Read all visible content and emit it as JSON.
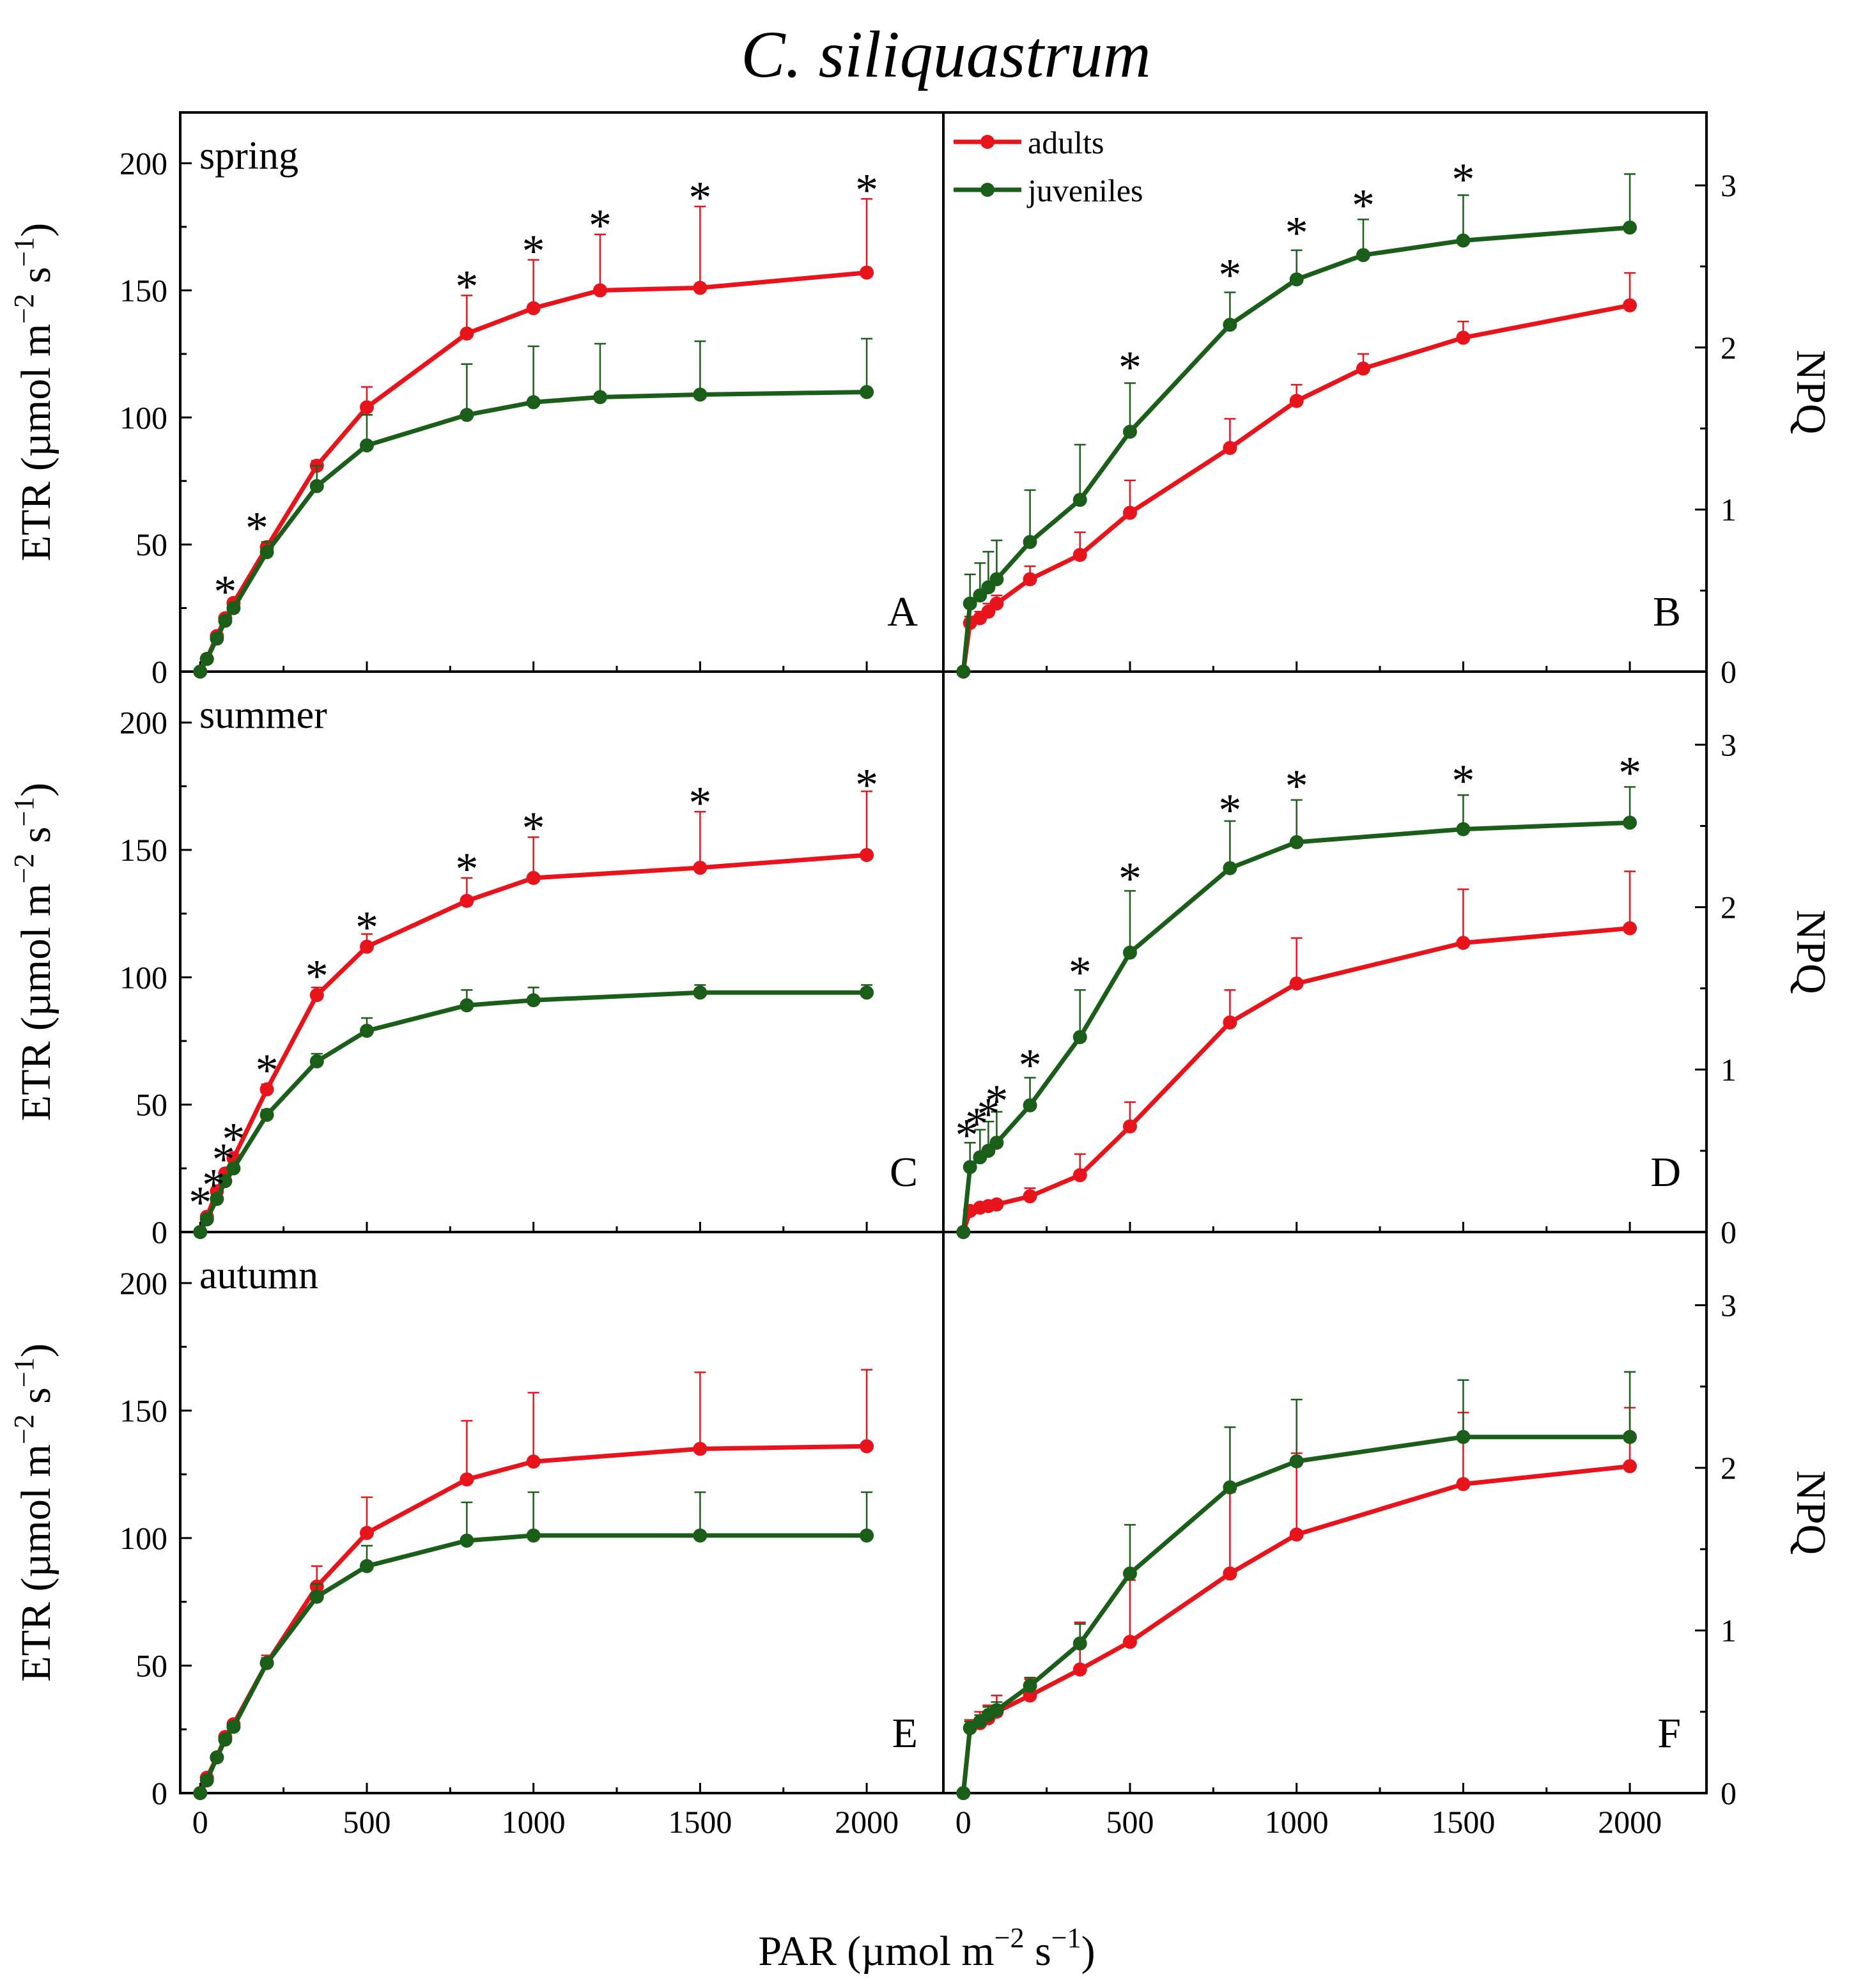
{
  "title": "C. siliquastrum",
  "x_axis_title": "PAR (µmol m",
  "x_axis_title_exp": "−2",
  "x_axis_title_mid": " s",
  "x_axis_title_exp2": "−1",
  "x_axis_title_end": ")",
  "left_axis_title": "ETR (µmol m",
  "left_axis_title_exp": "−2",
  "left_axis_title_mid": " s",
  "left_axis_title_exp2": "−1",
  "left_axis_title_end": ")",
  "right_axis_title": "NPQ",
  "legend": {
    "adults": "adults",
    "juveniles": "juveniles"
  },
  "colors": {
    "adults": "#e8141c",
    "juveniles": "#1a5e1a"
  },
  "star_symbol": "*",
  "chart_data": {
    "type": "line",
    "x_ticks": [
      0,
      500,
      1000,
      1500,
      2000
    ],
    "x_tick_labels": [
      "0",
      "500",
      "1000",
      "1500",
      "2000"
    ],
    "xlim": [
      -60,
      2230
    ],
    "etr_ticks": [
      0,
      50,
      100,
      150,
      200
    ],
    "etr_tick_labels": [
      "0",
      "50",
      "100",
      "150",
      "200"
    ],
    "etr_ylim": [
      0,
      220
    ],
    "npq_ticks": [
      0,
      1,
      2,
      3
    ],
    "npq_tick_labels": [
      "0",
      "1",
      "2",
      "3"
    ],
    "npq_ylim": [
      0,
      3.45
    ],
    "panels": [
      {
        "id": "A",
        "row": 0,
        "col": 0,
        "metric": "ETR",
        "season": "spring",
        "series": [
          {
            "name": "adults",
            "x": [
              0,
              20,
              50,
              75,
              100,
              200,
              350,
              500,
              800,
              1000,
              1200,
              1500,
              2000
            ],
            "y": [
              0,
              5,
              14,
              21,
              27,
              49,
              81,
              104,
              133,
              143,
              150,
              151,
              157
            ],
            "err": [
              0,
              0.5,
              1,
              1,
              1.5,
              2,
              2,
              8,
              15,
              19,
              22,
              32,
              29
            ]
          },
          {
            "name": "juveniles",
            "x": [
              0,
              20,
              50,
              75,
              100,
              200,
              350,
              500,
              800,
              1000,
              1200,
              1500,
              2000
            ],
            "y": [
              0,
              5,
              13,
              20,
              25,
              47,
              73,
              89,
              101,
              106,
              108,
              109,
              110
            ],
            "err": [
              0,
              0.5,
              1,
              1,
              1.5,
              4,
              8,
              12,
              20,
              22,
              21,
              21,
              21
            ]
          }
        ],
        "stars": [
          {
            "x": 75,
            "y": 33
          },
          {
            "x": 170,
            "y": 58
          },
          {
            "x": 800,
            "y": 153
          },
          {
            "x": 1000,
            "y": 167
          },
          {
            "x": 1200,
            "y": 177
          },
          {
            "x": 1500,
            "y": 188
          },
          {
            "x": 2000,
            "y": 191
          }
        ]
      },
      {
        "id": "B",
        "row": 0,
        "col": 1,
        "metric": "NPQ",
        "season": "",
        "series": [
          {
            "name": "adults",
            "x": [
              0,
              20,
              50,
              75,
              100,
              200,
              350,
              500,
              800,
              1000,
              1200,
              1500,
              2000
            ],
            "y": [
              0,
              0.3,
              0.33,
              0.37,
              0.42,
              0.57,
              0.72,
              0.98,
              1.38,
              1.67,
              1.87,
              2.06,
              2.26
            ],
            "err": [
              0,
              0.04,
              0.04,
              0.05,
              0.05,
              0.08,
              0.14,
              0.2,
              0.18,
              0.1,
              0.09,
              0.1,
              0.2
            ]
          },
          {
            "name": "juveniles",
            "x": [
              0,
              20,
              50,
              75,
              100,
              200,
              350,
              500,
              800,
              1000,
              1200,
              1500,
              2000
            ],
            "y": [
              0,
              0.42,
              0.47,
              0.52,
              0.57,
              0.8,
              1.06,
              1.48,
              2.14,
              2.42,
              2.57,
              2.66,
              2.74
            ],
            "err": [
              0,
              0.18,
              0.2,
              0.22,
              0.24,
              0.32,
              0.34,
              0.3,
              0.2,
              0.18,
              0.22,
              0.28,
              0.33
            ]
          }
        ],
        "stars": [
          {
            "x": 500,
            "y": 1.9
          },
          {
            "x": 800,
            "y": 2.47
          },
          {
            "x": 1000,
            "y": 2.73
          },
          {
            "x": 1200,
            "y": 2.9
          },
          {
            "x": 1500,
            "y": 3.06
          }
        ]
      },
      {
        "id": "C",
        "row": 1,
        "col": 0,
        "metric": "ETR",
        "season": "summer",
        "series": [
          {
            "name": "adults",
            "x": [
              0,
              20,
              50,
              75,
              100,
              200,
              350,
              500,
              800,
              1000,
              1500,
              2000
            ],
            "y": [
              0,
              6,
              16,
              23,
              29,
              56,
              93,
              112,
              130,
              139,
              143,
              148
            ],
            "err": [
              0,
              0.5,
              1,
              1,
              1.5,
              2,
              3,
              5,
              9,
              16,
              22,
              25
            ]
          },
          {
            "name": "juveniles",
            "x": [
              0,
              20,
              50,
              75,
              100,
              200,
              350,
              500,
              800,
              1000,
              1500,
              2000
            ],
            "y": [
              0,
              5,
              13,
              20,
              25,
              46,
              67,
              79,
              89,
              91,
              94,
              94
            ],
            "err": [
              0,
              0.5,
              1,
              1,
              1.5,
              2,
              3,
              5,
              6,
              5,
              3,
              3
            ]
          }
        ],
        "stars": [
          {
            "x": 0,
            "y": 13
          },
          {
            "x": 40,
            "y": 20
          },
          {
            "x": 70,
            "y": 30
          },
          {
            "x": 100,
            "y": 38
          },
          {
            "x": 200,
            "y": 65
          },
          {
            "x": 350,
            "y": 102
          },
          {
            "x": 500,
            "y": 121
          },
          {
            "x": 800,
            "y": 144
          },
          {
            "x": 1000,
            "y": 160
          },
          {
            "x": 1500,
            "y": 170
          },
          {
            "x": 2000,
            "y": 177
          }
        ]
      },
      {
        "id": "D",
        "row": 1,
        "col": 1,
        "metric": "NPQ",
        "season": "",
        "series": [
          {
            "name": "adults",
            "x": [
              0,
              20,
              50,
              75,
              100,
              200,
              350,
              500,
              800,
              1000,
              1500,
              2000
            ],
            "y": [
              0,
              0.13,
              0.15,
              0.16,
              0.17,
              0.22,
              0.35,
              0.65,
              1.29,
              1.53,
              1.78,
              1.87
            ],
            "err": [
              0,
              0.02,
              0.02,
              0.02,
              0.02,
              0.05,
              0.13,
              0.15,
              0.2,
              0.28,
              0.33,
              0.35
            ]
          },
          {
            "name": "juveniles",
            "x": [
              0,
              20,
              50,
              75,
              100,
              200,
              350,
              500,
              800,
              1000,
              1500,
              2000
            ],
            "y": [
              0,
              0.4,
              0.46,
              0.5,
              0.55,
              0.78,
              1.2,
              1.72,
              2.24,
              2.4,
              2.48,
              2.52
            ],
            "err": [
              0,
              0.15,
              0.17,
              0.18,
              0.19,
              0.17,
              0.29,
              0.38,
              0.29,
              0.26,
              0.21,
              0.22
            ]
          }
        ],
        "stars": [
          {
            "x": 10,
            "y": 0.62
          },
          {
            "x": 40,
            "y": 0.69
          },
          {
            "x": 75,
            "y": 0.75
          },
          {
            "x": 100,
            "y": 0.83
          },
          {
            "x": 200,
            "y": 1.05
          },
          {
            "x": 350,
            "y": 1.62
          },
          {
            "x": 500,
            "y": 2.2
          },
          {
            "x": 800,
            "y": 2.62
          },
          {
            "x": 1000,
            "y": 2.77
          },
          {
            "x": 1500,
            "y": 2.8
          },
          {
            "x": 2000,
            "y": 2.85
          }
        ]
      },
      {
        "id": "E",
        "row": 2,
        "col": 0,
        "metric": "ETR",
        "season": "autumn",
        "series": [
          {
            "name": "adults",
            "x": [
              0,
              20,
              50,
              75,
              100,
              200,
              350,
              500,
              800,
              1000,
              1500,
              2000
            ],
            "y": [
              0,
              6,
              14,
              22,
              27,
              51,
              81,
              102,
              123,
              130,
              135,
              136
            ],
            "err": [
              0,
              0.5,
              1,
              1,
              1.5,
              3,
              8,
              14,
              23,
              27,
              30,
              30
            ]
          },
          {
            "name": "juveniles",
            "x": [
              0,
              20,
              50,
              75,
              100,
              200,
              350,
              500,
              800,
              1000,
              1500,
              2000
            ],
            "y": [
              0,
              5,
              14,
              21,
              26,
              51,
              77,
              89,
              99,
              101,
              101,
              101
            ],
            "err": [
              0,
              0.5,
              1,
              1,
              1.5,
              2,
              5,
              8,
              15,
              17,
              17,
              17
            ]
          }
        ],
        "stars": []
      },
      {
        "id": "F",
        "row": 2,
        "col": 1,
        "metric": "NPQ",
        "season": "",
        "series": [
          {
            "name": "adults",
            "x": [
              0,
              20,
              50,
              75,
              100,
              200,
              350,
              500,
              800,
              1000,
              1500,
              2000
            ],
            "y": [
              0,
              0.4,
              0.43,
              0.46,
              0.5,
              0.6,
              0.76,
              0.93,
              1.35,
              1.59,
              1.9,
              2.01
            ],
            "err": [
              0,
              0.05,
              0.07,
              0.08,
              0.1,
              0.1,
              0.29,
              0.38,
              0.5,
              0.5,
              0.44,
              0.36
            ]
          },
          {
            "name": "juveniles",
            "x": [
              0,
              20,
              50,
              75,
              100,
              200,
              350,
              500,
              800,
              1000,
              1500,
              2000
            ],
            "y": [
              0,
              0.4,
              0.44,
              0.48,
              0.51,
              0.66,
              0.92,
              1.35,
              1.88,
              2.04,
              2.19,
              2.19
            ],
            "err": [
              0,
              0.04,
              0.04,
              0.05,
              0.05,
              0.05,
              0.12,
              0.3,
              0.37,
              0.38,
              0.35,
              0.4
            ]
          }
        ],
        "stars": []
      }
    ]
  }
}
